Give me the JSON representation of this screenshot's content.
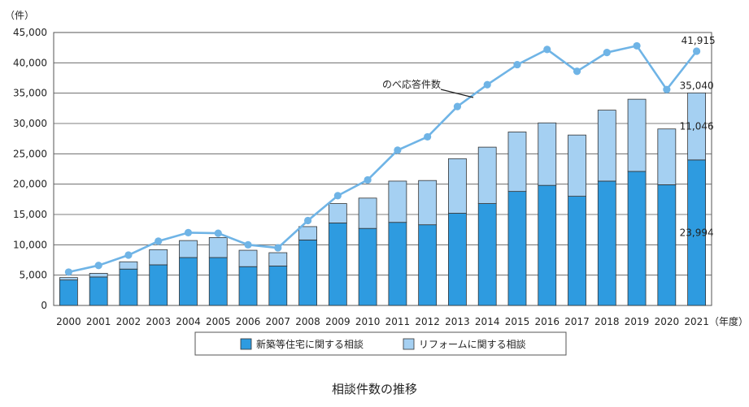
{
  "chart_data": {
    "type": "bar",
    "stacked": true,
    "overlay": "line",
    "y_unit": "（件）",
    "x_unit": "（年度）",
    "ylim": [
      0,
      45000
    ],
    "yticks": [
      "0",
      "5,000",
      "10,000",
      "15,000",
      "20,000",
      "25,000",
      "30,000",
      "35,000",
      "40,000",
      "45,000"
    ],
    "ytick_values": [
      0,
      5000,
      10000,
      15000,
      20000,
      25000,
      30000,
      35000,
      40000,
      45000
    ],
    "grid": true,
    "categories": [
      "2000",
      "2001",
      "2002",
      "2003",
      "2004",
      "2005",
      "2006",
      "2007",
      "2008",
      "2009",
      "2010",
      "2011",
      "2012",
      "2013",
      "2014",
      "2015",
      "2016",
      "2017",
      "2018",
      "2019",
      "2020",
      "2021"
    ],
    "series": [
      {
        "name": "新築等住宅に関する相談",
        "kind": "bar",
        "color": "#2e9be0",
        "values": [
          4200,
          4700,
          6000,
          6700,
          7900,
          7900,
          6400,
          6500,
          10800,
          13600,
          12700,
          13700,
          13300,
          15200,
          16800,
          18800,
          19800,
          18000,
          20500,
          22100,
          19900,
          23994
        ]
      },
      {
        "name": "リフォームに関する相談",
        "kind": "bar",
        "color": "#a5d0f2",
        "values": [
          400,
          600,
          1200,
          2500,
          2800,
          3300,
          2700,
          2200,
          2200,
          3200,
          5000,
          6800,
          7300,
          9000,
          9300,
          9800,
          10300,
          10100,
          11700,
          11900,
          9200,
          11046
        ]
      },
      {
        "name": "のべ応答件数",
        "kind": "line",
        "color": "#6fb4e6",
        "values": [
          5500,
          6600,
          8300,
          10600,
          12000,
          11900,
          10000,
          9500,
          14000,
          18100,
          20700,
          25600,
          27800,
          32800,
          36400,
          39700,
          42200,
          38600,
          41700,
          42800,
          35600,
          41915
        ]
      }
    ],
    "data_labels": {
      "line_last": "41,915",
      "total_last": "35,040",
      "upper_last": "11,046",
      "lower_last": "23,994"
    },
    "annotation": "のべ応答件数",
    "legend_position": "bottom"
  },
  "caption": "相談件数の推移"
}
